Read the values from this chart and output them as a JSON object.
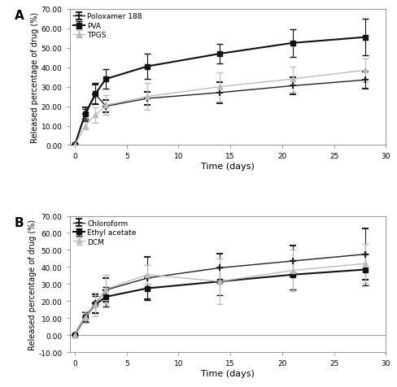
{
  "panel_A": {
    "title": "A",
    "xlabel": "Time (days)",
    "ylabel": "Released percentage of drug (%)",
    "ylim": [
      0,
      70
    ],
    "xlim": [
      -0.5,
      30
    ],
    "yticks": [
      0,
      10,
      20,
      30,
      40,
      50,
      60,
      70
    ],
    "ytick_labels": [
      "0.00",
      "10.00",
      "20.00",
      "30.00",
      "40.00",
      "50.00",
      "60.00",
      "70.00"
    ],
    "xticks": [
      0,
      5,
      10,
      15,
      20,
      25,
      30
    ],
    "series": [
      {
        "label": "Poloxamer 188",
        "color": "#222222",
        "marker": "+",
        "markersize": 6,
        "markeredgewidth": 1.5,
        "linewidth": 1.0,
        "x": [
          0,
          1,
          2,
          3,
          7,
          14,
          21,
          28
        ],
        "y": [
          0.0,
          16.0,
          26.0,
          20.0,
          24.0,
          27.0,
          30.5,
          33.5
        ],
        "yerr": [
          0.0,
          3.5,
          5.0,
          3.0,
          3.5,
          5.5,
          4.5,
          4.5
        ]
      },
      {
        "label": "PVA",
        "color": "#111111",
        "marker": "s",
        "markersize": 5,
        "markeredgewidth": 1.0,
        "linewidth": 1.5,
        "x": [
          0,
          1,
          2,
          3,
          7,
          14,
          21,
          28
        ],
        "y": [
          0.0,
          16.0,
          26.5,
          34.0,
          40.5,
          47.0,
          52.5,
          55.5
        ],
        "yerr": [
          0.0,
          2.5,
          5.5,
          5.0,
          6.5,
          5.0,
          7.0,
          9.5
        ]
      },
      {
        "label": "TPGS",
        "color": "#bbbbbb",
        "marker": "^",
        "markersize": 5,
        "markeredgewidth": 1.0,
        "linewidth": 1.0,
        "x": [
          0,
          1,
          2,
          3,
          7,
          14,
          21,
          28
        ],
        "y": [
          0.0,
          10.0,
          15.5,
          20.5,
          25.0,
          30.0,
          34.0,
          38.5
        ],
        "yerr": [
          0.0,
          2.0,
          4.0,
          5.0,
          7.0,
          7.5,
          6.5,
          6.0
        ]
      }
    ]
  },
  "panel_B": {
    "title": "B",
    "xlabel": "Time (days)",
    "ylabel": "Released percentage of drug (%)",
    "ylim": [
      -10,
      70
    ],
    "xlim": [
      -0.5,
      30
    ],
    "yticks": [
      -10,
      0,
      10,
      20,
      30,
      40,
      50,
      60,
      70
    ],
    "ytick_labels": [
      "-10.00",
      "0.00",
      "10.00",
      "20.00",
      "30.00",
      "40.00",
      "50.00",
      "60.00",
      "70.00"
    ],
    "xticks": [
      0,
      5,
      10,
      15,
      20,
      25,
      30
    ],
    "series": [
      {
        "label": "Chloroform",
        "color": "#222222",
        "marker": "+",
        "markersize": 6,
        "markeredgewidth": 1.5,
        "linewidth": 1.0,
        "x": [
          0,
          1,
          2,
          3,
          7,
          14,
          21,
          28
        ],
        "y": [
          0.0,
          10.5,
          18.5,
          26.5,
          33.5,
          39.5,
          43.5,
          47.5
        ],
        "yerr": [
          0.0,
          3.0,
          5.5,
          7.0,
          12.5,
          8.5,
          9.0,
          15.0
        ]
      },
      {
        "label": "Ethyl acetate",
        "color": "#111111",
        "marker": "s",
        "markersize": 5,
        "markeredgewidth": 1.0,
        "linewidth": 1.5,
        "x": [
          0,
          1,
          2,
          3,
          7,
          14,
          21,
          28
        ],
        "y": [
          0.0,
          10.5,
          18.0,
          22.5,
          27.5,
          31.5,
          35.5,
          38.5
        ],
        "yerr": [
          0.0,
          3.0,
          5.0,
          5.5,
          7.0,
          8.0,
          8.5,
          9.5
        ]
      },
      {
        "label": "DCM",
        "color": "#bbbbbb",
        "marker": "^",
        "markersize": 5,
        "markeredgewidth": 1.0,
        "linewidth": 1.0,
        "x": [
          0,
          1,
          2,
          3,
          7,
          14,
          21,
          28
        ],
        "y": [
          0.0,
          10.5,
          18.0,
          27.0,
          35.5,
          31.5,
          38.0,
          42.0
        ],
        "yerr": [
          0.0,
          3.5,
          7.0,
          8.5,
          5.5,
          13.5,
          12.0,
          11.5
        ]
      }
    ]
  },
  "background_color": "#ffffff"
}
